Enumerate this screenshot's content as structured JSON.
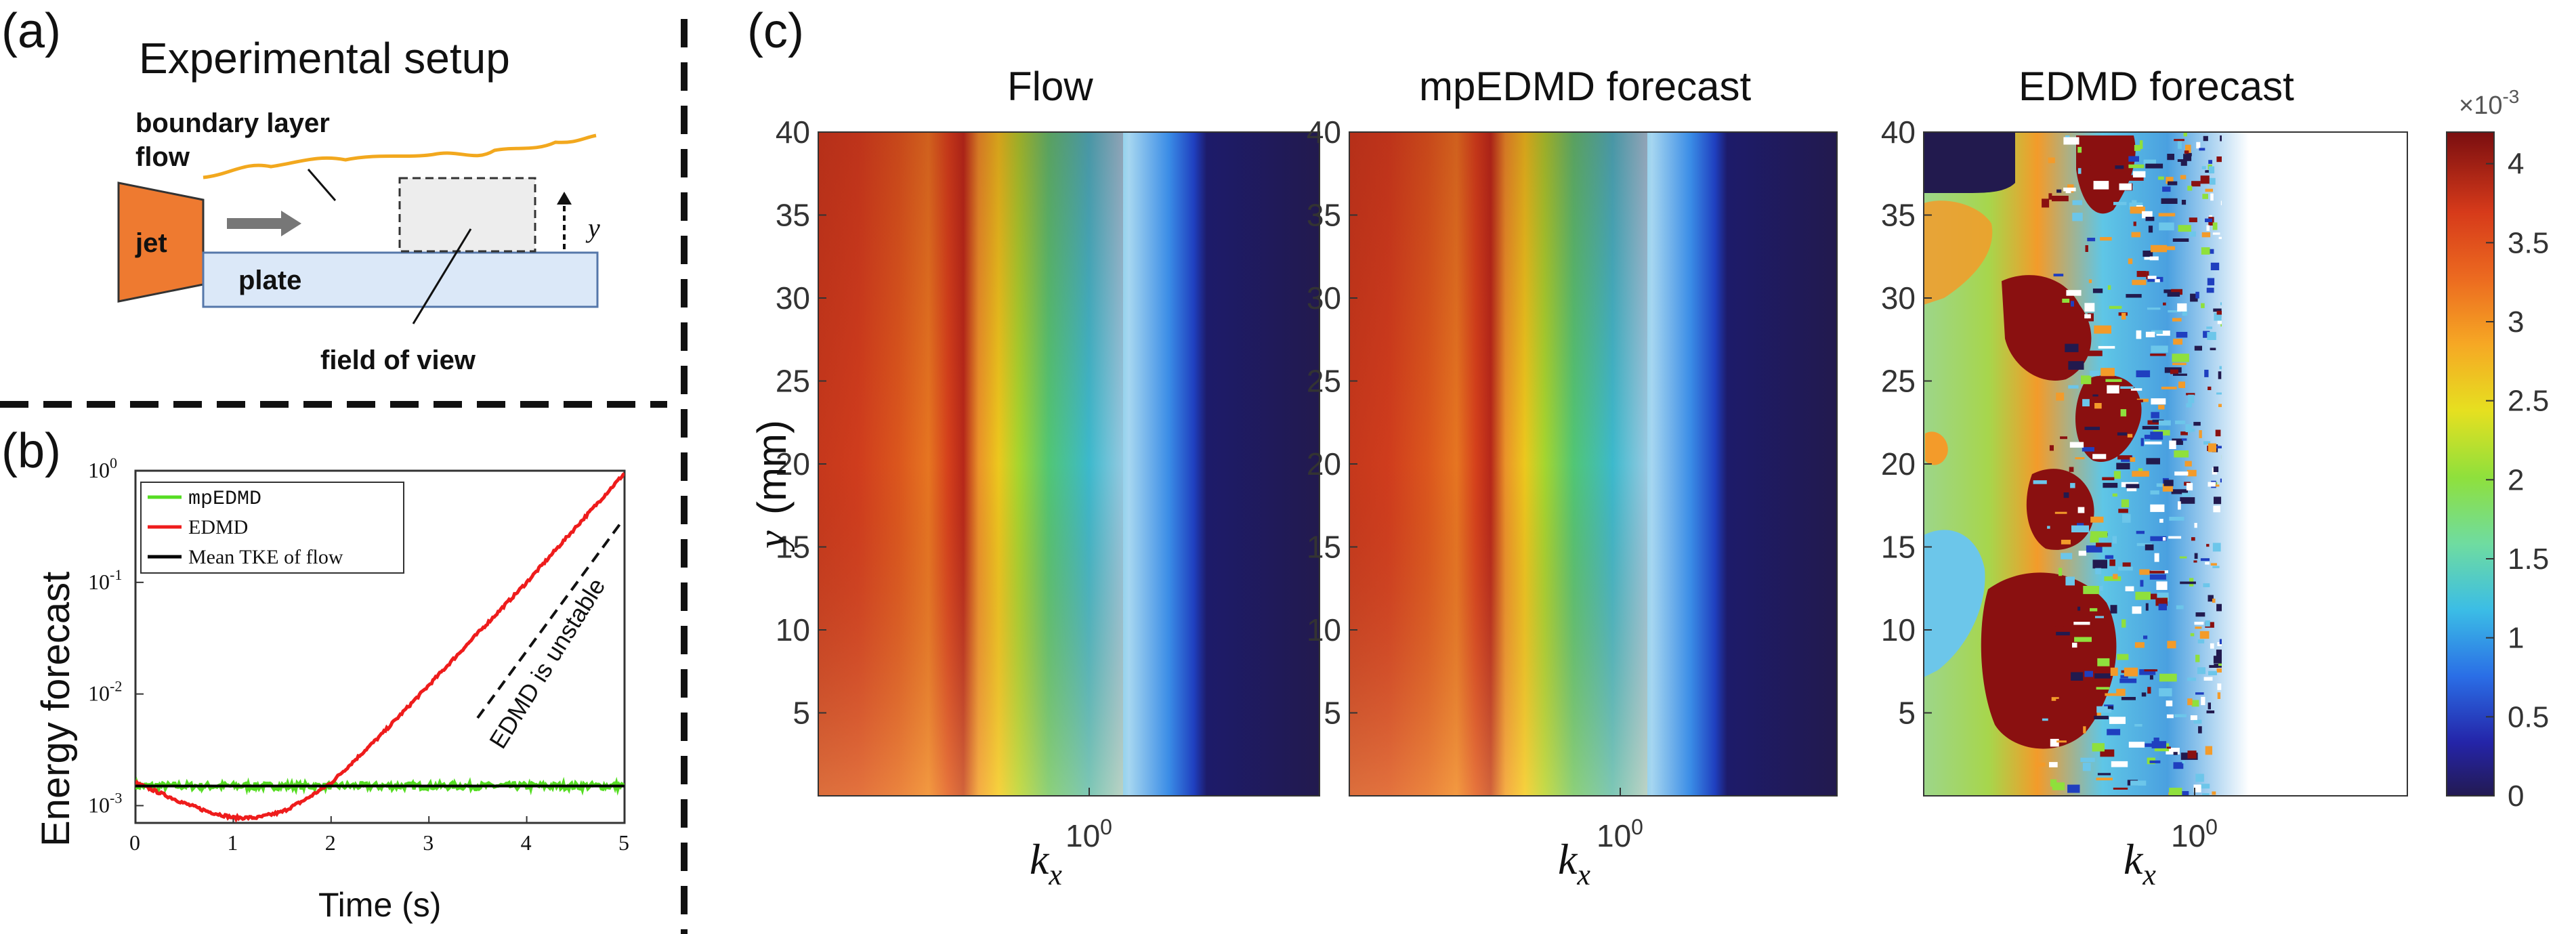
{
  "panel_labels": {
    "a": "(a)",
    "b": "(b)",
    "c": "(c)"
  },
  "setup": {
    "title": "Experimental setup",
    "boundary_layer": "boundary layer",
    "flow": "flow",
    "jet": "jet",
    "plate": "plate",
    "y_arrow": "y",
    "field_of_view": "field of view"
  },
  "energy_plot": {
    "ylabel": "Energy forecast",
    "xlabel": "Time (s)",
    "x_ticks": [
      "0",
      "1",
      "2",
      "3",
      "4",
      "5"
    ],
    "legend": [
      "mpEDMD",
      "EDMD",
      "Mean TKE of flow"
    ],
    "annotation": "EDMD is unstable",
    "colors": {
      "mpEDMD": "#55dd22",
      "EDMD": "#ee1c1c",
      "mean": "#000000"
    }
  },
  "spectra": {
    "titles": [
      "Flow",
      "mpEDMD forecast",
      "EDMD forecast"
    ],
    "ylabel_var": "y",
    "ylabel_unit": "(mm)",
    "xlabel_base": "k",
    "xlabel_sub": "x",
    "y_ticks": [
      "40",
      "35",
      "30",
      "25",
      "20",
      "15",
      "10",
      "5"
    ],
    "x_tick_base": "10",
    "x_tick_exp": "0"
  },
  "colorbar": {
    "multiplier_base": "×10",
    "multiplier_exp": "-3",
    "ticks": [
      "4",
      "3.5",
      "3",
      "2.5",
      "2",
      "1.5",
      "1",
      "0.5",
      "0"
    ]
  },
  "chart_data": [
    {
      "type": "line",
      "title": "",
      "xlabel": "Time (s)",
      "ylabel": "Energy forecast",
      "xlim": [
        0,
        5
      ],
      "ylim": [
        0.0007,
        1
      ],
      "yscale": "log",
      "y_tick_exponents": [
        -3,
        -2,
        -1,
        0
      ],
      "series": [
        {
          "name": "mpEDMD",
          "x": [
            0,
            1,
            2,
            3,
            4,
            5
          ],
          "values": [
            0.0015,
            0.0015,
            0.0015,
            0.0015,
            0.0015,
            0.0015
          ]
        },
        {
          "name": "EDMD",
          "x": [
            0,
            0.25,
            0.5,
            0.75,
            1.0,
            1.25,
            1.5,
            1.75,
            2.0,
            2.5,
            3.0,
            3.5,
            4.0,
            4.5,
            5.0
          ],
          "values": [
            0.0016,
            0.0013,
            0.00105,
            0.00088,
            0.00078,
            0.00078,
            0.00088,
            0.00115,
            0.0016,
            0.0042,
            0.012,
            0.035,
            0.1,
            0.31,
            0.95
          ]
        },
        {
          "name": "Mean TKE of flow",
          "x": [
            0,
            5
          ],
          "values": [
            0.0015,
            0.0015
          ]
        }
      ],
      "annotation": "EDMD is unstable"
    },
    {
      "type": "heatmap",
      "titles": [
        "Flow",
        "mpEDMD forecast",
        "EDMD forecast"
      ],
      "xlabel": "k_x",
      "ylabel": "y (mm)",
      "xscale": "log",
      "ylim": [
        0,
        40
      ],
      "y_ticks": [
        5,
        10,
        15,
        20,
        25,
        30,
        35,
        40
      ],
      "x_ticks": [
        "10^0"
      ],
      "colorbar": {
        "min": 0,
        "max": 0.0042,
        "ticks": [
          0,
          0.0005,
          0.001,
          0.0015,
          0.002,
          0.0025,
          0.003,
          0.0035,
          0.004
        ],
        "multiplier": "×10^-3"
      },
      "column_profile_x_fraction": [
        0.0,
        0.08,
        0.16,
        0.24,
        0.28,
        0.32,
        0.36,
        0.42,
        0.5,
        0.6,
        0.7,
        0.76,
        0.78,
        1.0
      ],
      "column_profile_value_e3": [
        3.4,
        3.6,
        3.4,
        3.2,
        3.9,
        3.3,
        2.4,
        2.1,
        1.7,
        1.2,
        0.6,
        0.4,
        0.1,
        0.1
      ]
    }
  ]
}
